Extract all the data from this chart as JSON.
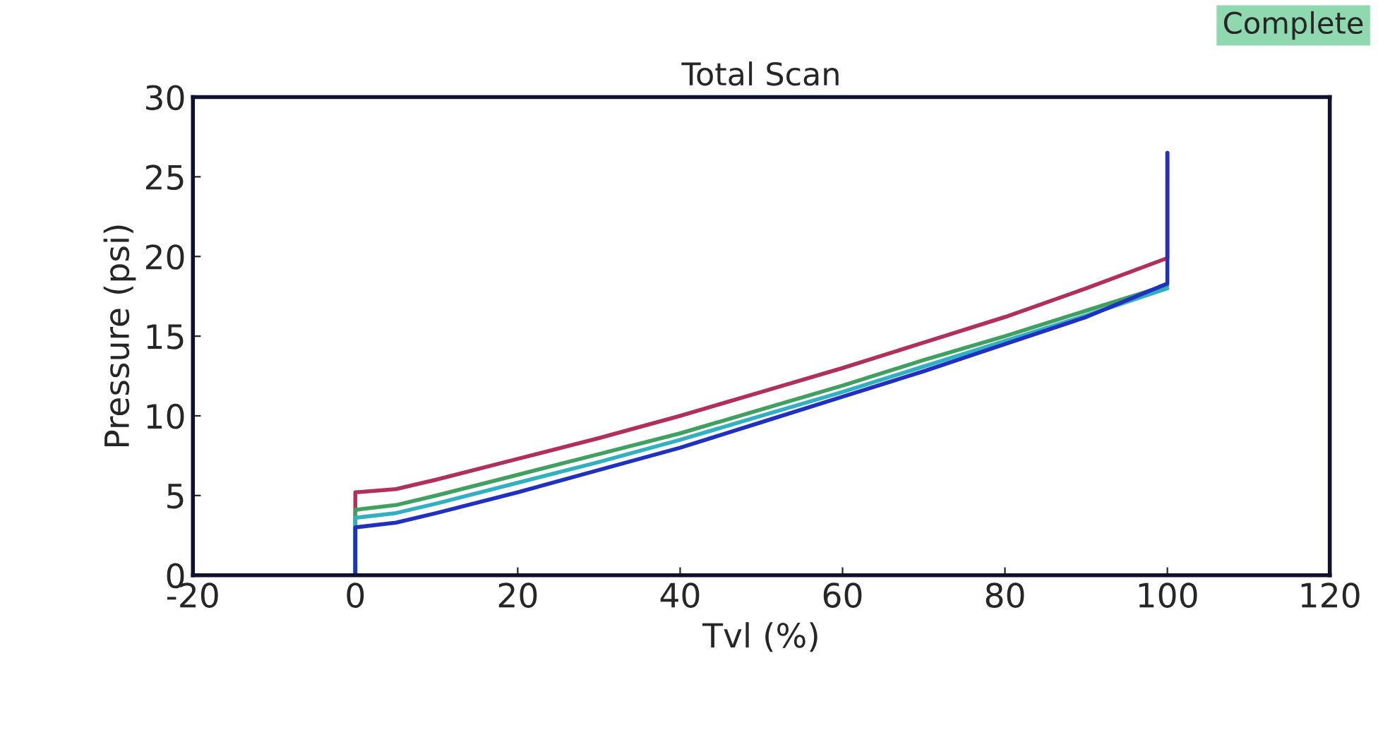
{
  "chart_data": {
    "type": "line",
    "title": "Total Scan",
    "xlabel": "Tvl (%)",
    "ylabel": "Pressure (psi)",
    "annotations": [
      "Complete"
    ],
    "xlim": [
      -20,
      120
    ],
    "xticks": [
      -20,
      0,
      20,
      40,
      60,
      80,
      100,
      120
    ],
    "ylim": [
      0,
      30
    ],
    "yticks": [
      0,
      5,
      10,
      15,
      20,
      25,
      30
    ],
    "grid": false,
    "legend": false,
    "line_style": "solid",
    "marker": "none",
    "x": [
      0,
      0,
      5,
      10,
      20,
      30,
      40,
      50,
      60,
      70,
      80,
      90,
      100,
      100
    ],
    "series": [
      {
        "color": "#b0305a",
        "values": [
          0,
          5.2,
          5.4,
          6.0,
          7.3,
          8.6,
          10.0,
          11.5,
          13.0,
          14.6,
          16.2,
          18.0,
          19.9,
          26.5
        ]
      },
      {
        "color": "#40a060",
        "values": [
          0,
          4.1,
          4.4,
          5.0,
          6.3,
          7.6,
          8.9,
          10.4,
          11.9,
          13.5,
          15.0,
          16.6,
          18.2,
          18.2
        ]
      },
      {
        "color": "#30b0c0",
        "values": [
          0,
          3.6,
          3.9,
          4.5,
          5.8,
          7.1,
          8.5,
          10.0,
          11.5,
          13.1,
          14.7,
          16.3,
          18.0,
          18.0
        ]
      },
      {
        "color": "#2030c0",
        "values": [
          0,
          3.0,
          3.3,
          3.9,
          5.2,
          6.6,
          8.0,
          9.6,
          11.2,
          12.8,
          14.5,
          16.2,
          18.3,
          26.5
        ]
      }
    ]
  }
}
